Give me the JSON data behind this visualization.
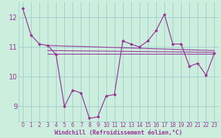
{
  "xlabel": "Windchill (Refroidissement éolien,°C)",
  "bg_color": "#cceedd",
  "grid_color": "#99cccc",
  "line_color": "#993399",
  "x_data": [
    0,
    1,
    2,
    3,
    4,
    5,
    6,
    7,
    8,
    9,
    10,
    11,
    12,
    13,
    14,
    15,
    16,
    17,
    18,
    19,
    20,
    21,
    22,
    23
  ],
  "y_main": [
    12.3,
    11.4,
    11.1,
    11.05,
    10.75,
    9.0,
    9.55,
    9.45,
    8.6,
    8.65,
    9.35,
    9.4,
    11.2,
    11.1,
    11.0,
    11.2,
    11.55,
    12.1,
    11.1,
    11.1,
    10.35,
    10.45,
    10.05,
    10.8
  ],
  "reg_lines": [
    {
      "x0": 3,
      "x1": 23,
      "y0": 11.05,
      "y1": 10.88
    },
    {
      "x0": 3,
      "x1": 23,
      "y0": 10.88,
      "y1": 10.82
    },
    {
      "x0": 3,
      "x1": 23,
      "y0": 10.78,
      "y1": 10.78
    }
  ],
  "ylim": [
    8.5,
    12.5
  ],
  "xlim": [
    -0.5,
    23.5
  ],
  "yticks": [
    9,
    10,
    11,
    12
  ],
  "xticks": [
    0,
    1,
    2,
    3,
    4,
    5,
    6,
    7,
    8,
    9,
    10,
    11,
    12,
    13,
    14,
    15,
    16,
    17,
    18,
    19,
    20,
    21,
    22,
    23
  ],
  "tick_fontsize": 5.5,
  "ytick_fontsize": 7,
  "xlabel_fontsize": 6,
  "linewidth": 0.9,
  "markersize": 2.0
}
